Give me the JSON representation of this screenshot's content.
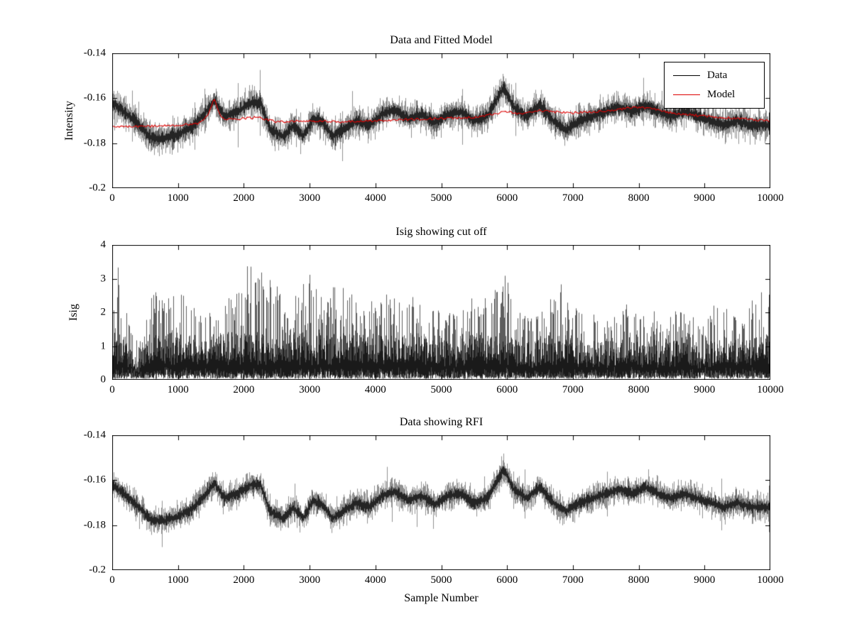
{
  "figure": {
    "background": "#ffffff",
    "axes_color": "#000000"
  },
  "chart_data": [
    {
      "type": "line",
      "title": "Data and Fitted Model",
      "xlabel": "",
      "ylabel": "Intensity",
      "xlim": [
        0,
        10000
      ],
      "ylim": [
        -0.2,
        -0.14
      ],
      "grid": false,
      "xticks": [
        0,
        1000,
        2000,
        3000,
        4000,
        5000,
        6000,
        7000,
        8000,
        9000,
        10000
      ],
      "xtick_labels": [
        "0",
        "1000",
        "2000",
        "3000",
        "4000",
        "5000",
        "6000",
        "7000",
        "8000",
        "9000",
        "10000"
      ],
      "yticks": [
        -0.14,
        -0.16,
        -0.18,
        -0.2
      ],
      "ytick_labels": [
        "-0.14",
        "-0.16",
        "-0.18",
        "-0.2"
      ],
      "legend": {
        "position": "northeast",
        "entries": [
          {
            "label": "Data",
            "color": "#000000"
          },
          {
            "label": "Model",
            "color": "#dd0000"
          }
        ]
      },
      "series": [
        {
          "name": "Data",
          "color": "#000000",
          "style": "noisy",
          "noise_amp": 0.0052,
          "trend": [
            [
              0,
              -0.162
            ],
            [
              300,
              -0.169
            ],
            [
              600,
              -0.178
            ],
            [
              800,
              -0.178
            ],
            [
              1000,
              -0.176
            ],
            [
              1200,
              -0.173
            ],
            [
              1400,
              -0.167
            ],
            [
              1550,
              -0.161
            ],
            [
              1700,
              -0.168
            ],
            [
              1900,
              -0.166
            ],
            [
              2100,
              -0.162
            ],
            [
              2250,
              -0.162
            ],
            [
              2400,
              -0.174
            ],
            [
              2600,
              -0.177
            ],
            [
              2750,
              -0.172
            ],
            [
              2900,
              -0.177
            ],
            [
              3050,
              -0.169
            ],
            [
              3200,
              -0.171
            ],
            [
              3350,
              -0.177
            ],
            [
              3500,
              -0.174
            ],
            [
              3700,
              -0.17
            ],
            [
              3900,
              -0.172
            ],
            [
              4100,
              -0.167
            ],
            [
              4300,
              -0.165
            ],
            [
              4500,
              -0.169
            ],
            [
              4700,
              -0.167
            ],
            [
              4900,
              -0.171
            ],
            [
              5100,
              -0.167
            ],
            [
              5300,
              -0.166
            ],
            [
              5500,
              -0.17
            ],
            [
              5700,
              -0.168
            ],
            [
              5850,
              -0.16
            ],
            [
              5950,
              -0.155
            ],
            [
              6100,
              -0.164
            ],
            [
              6300,
              -0.168
            ],
            [
              6500,
              -0.163
            ],
            [
              6700,
              -0.17
            ],
            [
              6900,
              -0.174
            ],
            [
              7100,
              -0.17
            ],
            [
              7300,
              -0.168
            ],
            [
              7500,
              -0.166
            ],
            [
              7700,
              -0.164
            ],
            [
              7900,
              -0.166
            ],
            [
              8100,
              -0.163
            ],
            [
              8300,
              -0.166
            ],
            [
              8500,
              -0.168
            ],
            [
              8700,
              -0.166
            ],
            [
              8900,
              -0.168
            ],
            [
              9100,
              -0.17
            ],
            [
              9300,
              -0.172
            ],
            [
              9500,
              -0.17
            ],
            [
              9700,
              -0.172
            ],
            [
              10000,
              -0.172
            ]
          ]
        },
        {
          "name": "Model",
          "color": "#dd0000",
          "style": "smooth",
          "noise_amp": 0.0005,
          "trend": [
            [
              0,
              -0.1725
            ],
            [
              500,
              -0.1725
            ],
            [
              1000,
              -0.172
            ],
            [
              1300,
              -0.1712
            ],
            [
              1450,
              -0.168
            ],
            [
              1550,
              -0.1605
            ],
            [
              1650,
              -0.1685
            ],
            [
              1800,
              -0.1695
            ],
            [
              2000,
              -0.169
            ],
            [
              2200,
              -0.1685
            ],
            [
              2500,
              -0.1705
            ],
            [
              3000,
              -0.17
            ],
            [
              3500,
              -0.1705
            ],
            [
              4000,
              -0.17
            ],
            [
              4500,
              -0.1695
            ],
            [
              5000,
              -0.169
            ],
            [
              5500,
              -0.1685
            ],
            [
              5900,
              -0.1665
            ],
            [
              6000,
              -0.166
            ],
            [
              6200,
              -0.167
            ],
            [
              6500,
              -0.1655
            ],
            [
              6800,
              -0.1662
            ],
            [
              7000,
              -0.1665
            ],
            [
              7500,
              -0.1658
            ],
            [
              7800,
              -0.1645
            ],
            [
              8000,
              -0.164
            ],
            [
              8200,
              -0.1646
            ],
            [
              8500,
              -0.1665
            ],
            [
              9000,
              -0.168
            ],
            [
              9500,
              -0.169
            ],
            [
              10000,
              -0.17
            ]
          ]
        }
      ]
    },
    {
      "type": "line",
      "title": "Isig showing cut off",
      "xlabel": "",
      "ylabel": "Isig",
      "xlim": [
        0,
        10000
      ],
      "ylim": [
        0,
        4
      ],
      "grid": false,
      "xticks": [
        0,
        1000,
        2000,
        3000,
        4000,
        5000,
        6000,
        7000,
        8000,
        9000,
        10000
      ],
      "xtick_labels": [
        "0",
        "1000",
        "2000",
        "3000",
        "4000",
        "5000",
        "6000",
        "7000",
        "8000",
        "9000",
        "10000"
      ],
      "yticks": [
        0,
        1,
        2,
        3,
        4
      ],
      "ytick_labels": [
        "0",
        "1",
        "2",
        "3",
        "4"
      ],
      "series": [
        {
          "name": "Isig",
          "color": "#000000",
          "style": "spiky",
          "floor": 0.05,
          "envelope": [
            [
              0,
              3.2
            ],
            [
              100,
              3.4
            ],
            [
              250,
              1.8
            ],
            [
              400,
              1.0
            ],
            [
              500,
              2.2
            ],
            [
              650,
              3.0
            ],
            [
              800,
              2.3
            ],
            [
              1000,
              2.8
            ],
            [
              1200,
              2.3
            ],
            [
              1400,
              2.1
            ],
            [
              1600,
              2.6
            ],
            [
              1800,
              2.4
            ],
            [
              2000,
              3.3
            ],
            [
              2200,
              3.6
            ],
            [
              2400,
              3.4
            ],
            [
              2600,
              2.3
            ],
            [
              2800,
              2.6
            ],
            [
              3000,
              3.3
            ],
            [
              3200,
              2.5
            ],
            [
              3400,
              2.9
            ],
            [
              3600,
              2.6
            ],
            [
              3800,
              2.3
            ],
            [
              4000,
              2.5
            ],
            [
              4200,
              2.7
            ],
            [
              4400,
              2.3
            ],
            [
              4600,
              2.5
            ],
            [
              4800,
              2.1
            ],
            [
              5000,
              2.3
            ],
            [
              5200,
              2.1
            ],
            [
              5400,
              2.5
            ],
            [
              5600,
              2.3
            ],
            [
              5800,
              2.7
            ],
            [
              5950,
              3.5
            ],
            [
              6100,
              2.1
            ],
            [
              6300,
              1.9
            ],
            [
              6500,
              2.1
            ],
            [
              6700,
              2.5
            ],
            [
              6850,
              2.9
            ],
            [
              7000,
              2.3
            ],
            [
              7200,
              1.9
            ],
            [
              7400,
              2.1
            ],
            [
              7600,
              1.9
            ],
            [
              7800,
              2.3
            ],
            [
              8000,
              1.9
            ],
            [
              8200,
              2.1
            ],
            [
              8400,
              1.9
            ],
            [
              8600,
              2.1
            ],
            [
              8800,
              1.9
            ],
            [
              9000,
              1.7
            ],
            [
              9200,
              2.4
            ],
            [
              9400,
              2.2
            ],
            [
              9600,
              2.1
            ],
            [
              9800,
              2.5
            ],
            [
              10000,
              2.9
            ]
          ]
        }
      ]
    },
    {
      "type": "line",
      "title": "Data showing RFI",
      "xlabel": "Sample Number",
      "ylabel": "",
      "xlim": [
        0,
        10000
      ],
      "ylim": [
        -0.2,
        -0.14
      ],
      "grid": false,
      "xticks": [
        0,
        1000,
        2000,
        3000,
        4000,
        5000,
        6000,
        7000,
        8000,
        9000,
        10000
      ],
      "xtick_labels": [
        "0",
        "1000",
        "2000",
        "3000",
        "4000",
        "5000",
        "6000",
        "7000",
        "8000",
        "9000",
        "10000"
      ],
      "yticks": [
        -0.14,
        -0.16,
        -0.18,
        -0.2
      ],
      "ytick_labels": [
        "-0.14",
        "-0.16",
        "-0.18",
        "-0.2"
      ],
      "series": [
        {
          "name": "Data",
          "color": "#000000",
          "style": "noisy",
          "noise_amp": 0.0046,
          "trend": [
            [
              0,
              -0.162
            ],
            [
              300,
              -0.169
            ],
            [
              600,
              -0.178
            ],
            [
              800,
              -0.178
            ],
            [
              1000,
              -0.176
            ],
            [
              1200,
              -0.173
            ],
            [
              1400,
              -0.167
            ],
            [
              1550,
              -0.161
            ],
            [
              1700,
              -0.168
            ],
            [
              1900,
              -0.166
            ],
            [
              2100,
              -0.162
            ],
            [
              2250,
              -0.162
            ],
            [
              2400,
              -0.174
            ],
            [
              2600,
              -0.177
            ],
            [
              2750,
              -0.172
            ],
            [
              2900,
              -0.177
            ],
            [
              3050,
              -0.169
            ],
            [
              3200,
              -0.171
            ],
            [
              3350,
              -0.177
            ],
            [
              3500,
              -0.174
            ],
            [
              3700,
              -0.17
            ],
            [
              3900,
              -0.172
            ],
            [
              4100,
              -0.167
            ],
            [
              4300,
              -0.165
            ],
            [
              4500,
              -0.169
            ],
            [
              4700,
              -0.167
            ],
            [
              4900,
              -0.171
            ],
            [
              5100,
              -0.167
            ],
            [
              5300,
              -0.166
            ],
            [
              5500,
              -0.17
            ],
            [
              5700,
              -0.168
            ],
            [
              5850,
              -0.16
            ],
            [
              5950,
              -0.155
            ],
            [
              6100,
              -0.164
            ],
            [
              6300,
              -0.168
            ],
            [
              6500,
              -0.163
            ],
            [
              6700,
              -0.17
            ],
            [
              6900,
              -0.174
            ],
            [
              7100,
              -0.17
            ],
            [
              7300,
              -0.168
            ],
            [
              7500,
              -0.166
            ],
            [
              7700,
              -0.164
            ],
            [
              7900,
              -0.166
            ],
            [
              8100,
              -0.163
            ],
            [
              8300,
              -0.166
            ],
            [
              8500,
              -0.168
            ],
            [
              8700,
              -0.166
            ],
            [
              8900,
              -0.168
            ],
            [
              9100,
              -0.17
            ],
            [
              9300,
              -0.172
            ],
            [
              9500,
              -0.17
            ],
            [
              9700,
              -0.172
            ],
            [
              10000,
              -0.172
            ]
          ]
        }
      ]
    }
  ]
}
